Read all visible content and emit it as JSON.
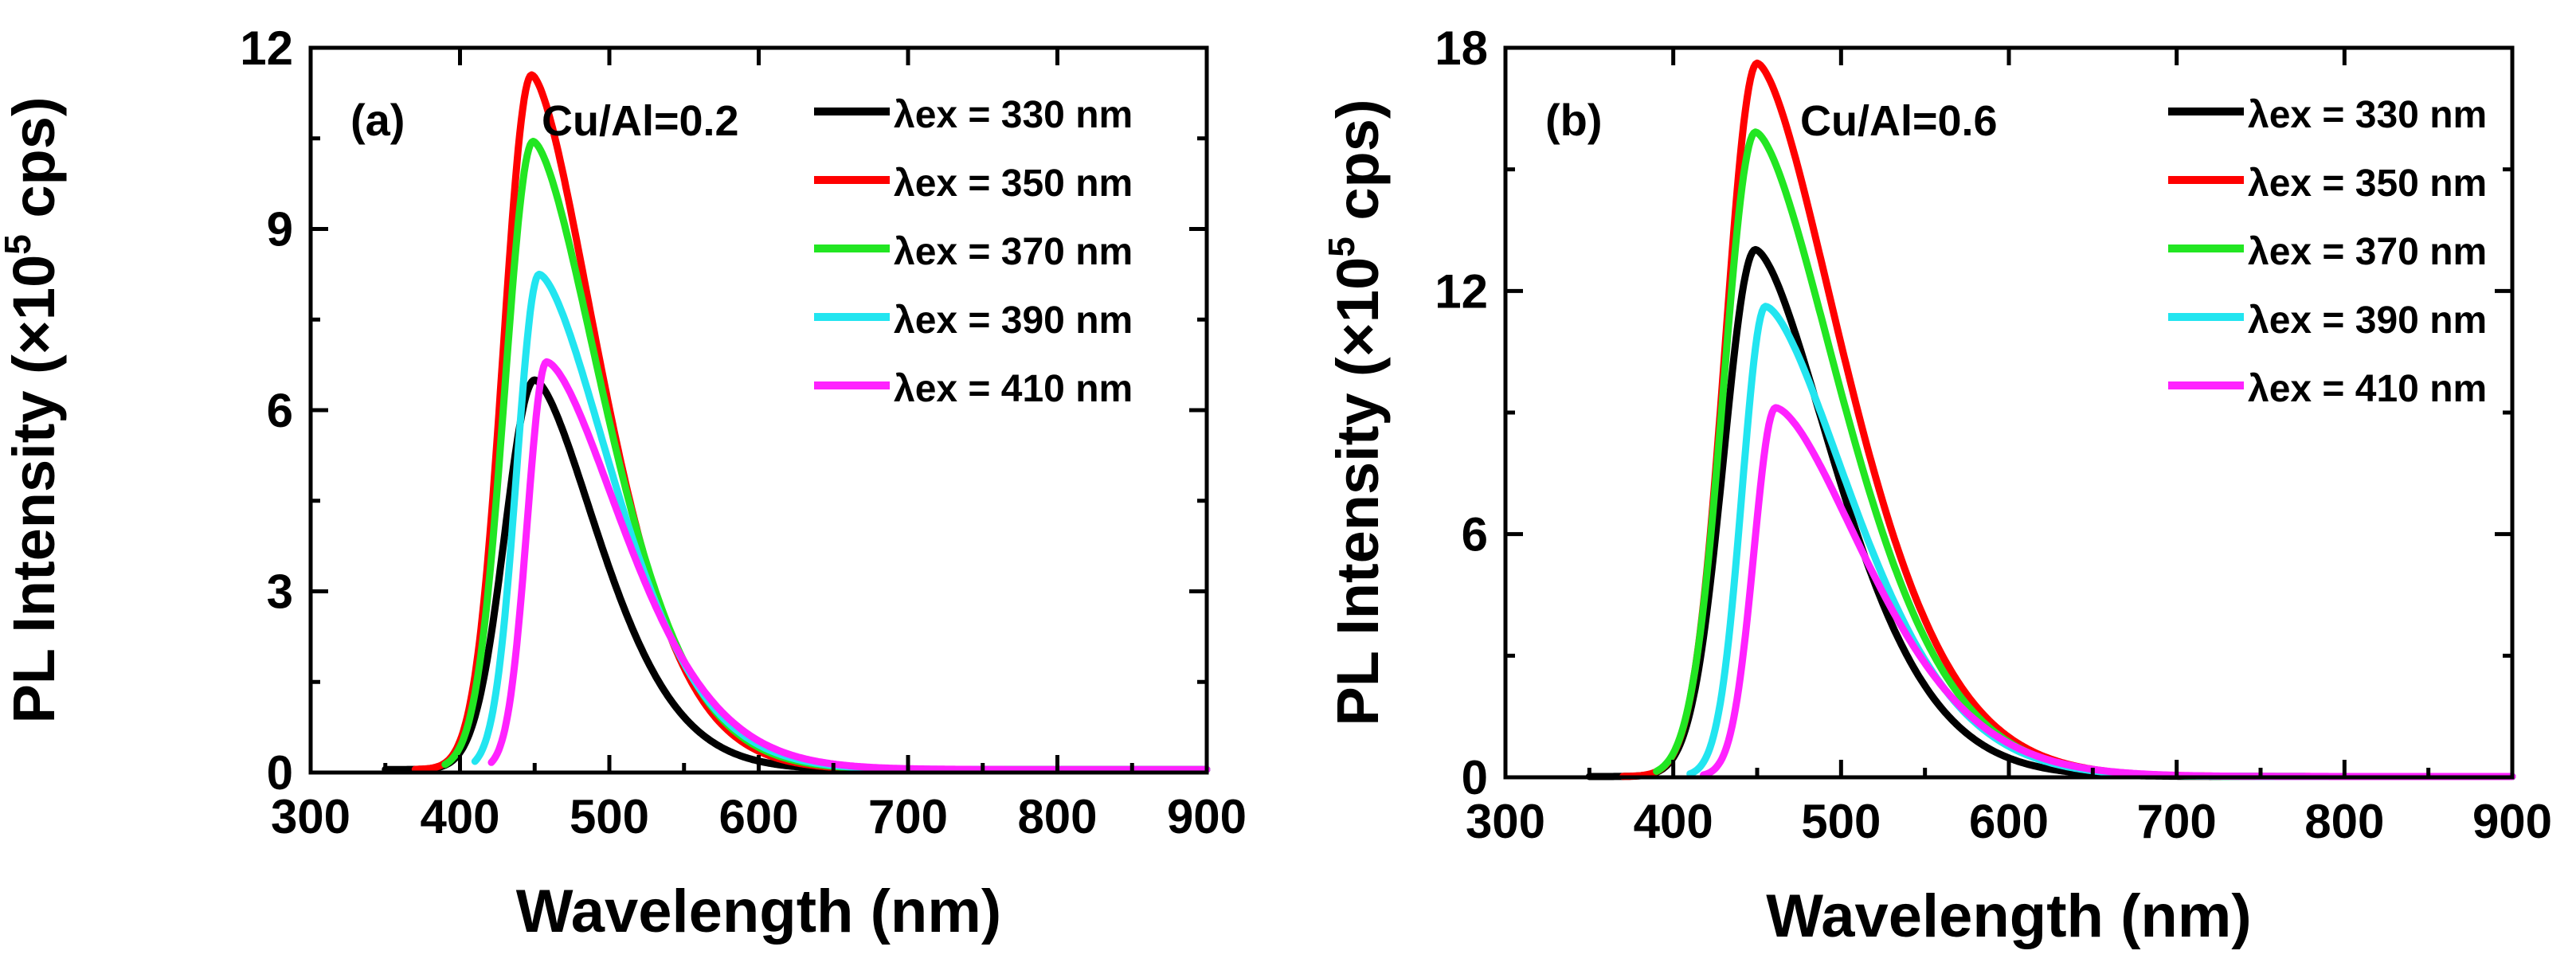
{
  "chart_data": [
    {
      "type": "line",
      "panel_label": "(a)",
      "annotation": "Cu/Al=0.2",
      "xlabel": "Wavelength (nm)",
      "ylabel": {
        "prefix": "PL Intensity (×10",
        "sup": "5",
        "suffix": " cps)"
      },
      "xlim": [
        300,
        900
      ],
      "ylim": [
        0,
        12
      ],
      "xticks": [
        300,
        400,
        500,
        600,
        700,
        800,
        900
      ],
      "yticks": [
        0,
        3,
        6,
        9,
        12
      ],
      "legend_position": "top-right",
      "series": [
        {
          "name": "λex = 330 nm",
          "color": "#000000",
          "start": 350,
          "peak": 450,
          "amp": 6.45,
          "sl": 20,
          "sr": 42,
          "base": 0.05
        },
        {
          "name": "λex = 350 nm",
          "color": "#ff0000",
          "start": 370,
          "peak": 448,
          "amp": 11.5,
          "sl": 19,
          "sr": 44,
          "base": 0.05
        },
        {
          "name": "λex = 370 nm",
          "color": "#22e622",
          "start": 390,
          "peak": 449,
          "amp": 10.4,
          "sl": 19,
          "sr": 46,
          "base": 0.05
        },
        {
          "name": "λex = 390 nm",
          "color": "#22e5f0",
          "start": 410,
          "peak": 453,
          "amp": 8.2,
          "sl": 15,
          "sr": 48,
          "base": 0.05
        },
        {
          "name": "λex = 410 nm",
          "color": "#ff22ff",
          "start": 421,
          "peak": 458,
          "amp": 6.75,
          "sl": 13,
          "sr": 50,
          "base": 0.05
        }
      ]
    },
    {
      "type": "line",
      "panel_label": "(b)",
      "annotation": "Cu/Al=0.6",
      "xlabel": "Wavelength (nm)",
      "ylabel": {
        "prefix": "PL Intensity (×10",
        "sup": "5",
        "suffix": " cps)"
      },
      "xlim": [
        300,
        900
      ],
      "ylim": [
        0,
        18
      ],
      "xticks": [
        300,
        400,
        500,
        600,
        700,
        800,
        900
      ],
      "yticks": [
        0,
        6,
        12,
        18
      ],
      "legend_position": "top-right",
      "series": [
        {
          "name": "λex = 330 nm",
          "color": "#000000",
          "start": 350,
          "peak": 449,
          "amp": 13.0,
          "sl": 19,
          "sr": 46,
          "base": 0.02
        },
        {
          "name": "λex = 350 nm",
          "color": "#ff0000",
          "start": 370,
          "peak": 450,
          "amp": 17.6,
          "sl": 19,
          "sr": 50,
          "base": 0.02
        },
        {
          "name": "λex = 370 nm",
          "color": "#22e622",
          "start": 390,
          "peak": 449,
          "amp": 15.9,
          "sl": 19,
          "sr": 50,
          "base": 0.02
        },
        {
          "name": "λex = 390 nm",
          "color": "#22e5f0",
          "start": 410,
          "peak": 455,
          "amp": 11.6,
          "sl": 14,
          "sr": 50,
          "base": 0.02
        },
        {
          "name": "λex = 410 nm",
          "color": "#ff22ff",
          "start": 418,
          "peak": 461,
          "amp": 9.1,
          "sl": 13,
          "sr": 52,
          "base": 0.02
        }
      ]
    }
  ]
}
